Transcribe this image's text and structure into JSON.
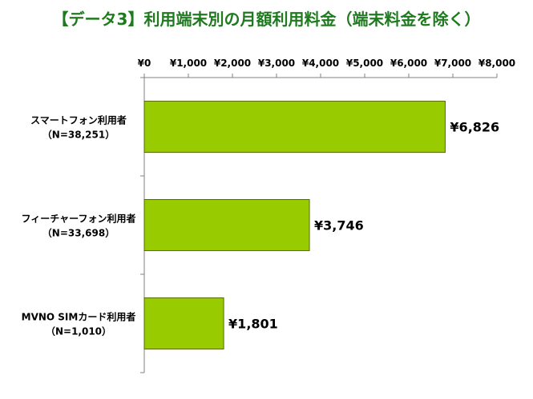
{
  "title": "【データ3】利用端末別の月額利用料金（端末料金を除く）",
  "chart_data": {
    "type": "bar",
    "orientation": "horizontal",
    "title": "【データ3】利用端末別の月額利用料金（端末料金を除く）",
    "categories": [
      {
        "label": "スマートフォン利用者",
        "sublabel": "（N=38,251）"
      },
      {
        "label": "フィーチャーフォン利用者",
        "sublabel": "（N=33,698）"
      },
      {
        "label": "MVNO SIMカード利用者",
        "sublabel": "（N=1,010）"
      }
    ],
    "values": [
      6826,
      3746,
      1801
    ],
    "value_labels": [
      "¥6,826",
      "¥3,746",
      "¥1,801"
    ],
    "xlim": [
      0,
      8000
    ],
    "x_ticks": [
      0,
      1000,
      2000,
      3000,
      4000,
      5000,
      6000,
      7000,
      8000
    ],
    "x_tick_labels": [
      "¥0",
      "¥1,000",
      "¥2,000",
      "¥3,000",
      "¥4,000",
      "¥5,000",
      "¥6,000",
      "¥7,000",
      "¥8,000"
    ],
    "x_axis_position": "top",
    "grid": false,
    "legend": "none",
    "bar_color": "#99cc00",
    "bar_border_color": "#556b00"
  }
}
